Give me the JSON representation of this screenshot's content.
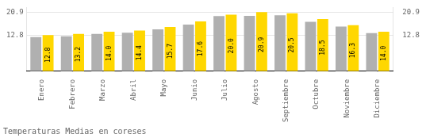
{
  "chart_data": {
    "type": "bar",
    "title": "Temperaturas Medias en coreses",
    "categories": [
      "Enero",
      "Febrero",
      "Marzo",
      "Abril",
      "Mayo",
      "Junio",
      "Julio",
      "Agosto",
      "Septiembre",
      "Octubre",
      "Noviembre",
      "Diciembre"
    ],
    "series": [
      {
        "color": "#B0B0B0",
        "values": [
          12.1,
          12.4,
          13.2,
          13.6,
          14.8,
          16.5,
          19.5,
          19.6,
          19.8,
          17.5,
          15.8,
          13.5
        ]
      },
      {
        "color": "#FFD700",
        "values": [
          12.8,
          13.2,
          14.0,
          14.4,
          15.7,
          17.6,
          20.0,
          20.9,
          20.5,
          18.5,
          16.3,
          14.0
        ],
        "value_labels": [
          "12.8",
          "13.2",
          "14.0",
          "14.4",
          "15.7",
          "17.6",
          "20.0",
          "20.9",
          "20.5",
          "18.5",
          "16.3",
          "14.0"
        ],
        "data_labels": true
      }
    ],
    "ylim": [
      0,
      22.572
    ],
    "yticks": [
      12.8,
      20.9
    ],
    "y2lim": [
      0,
      22.572
    ],
    "y2ticks": [
      12.8,
      20.9
    ],
    "grid": true
  }
}
